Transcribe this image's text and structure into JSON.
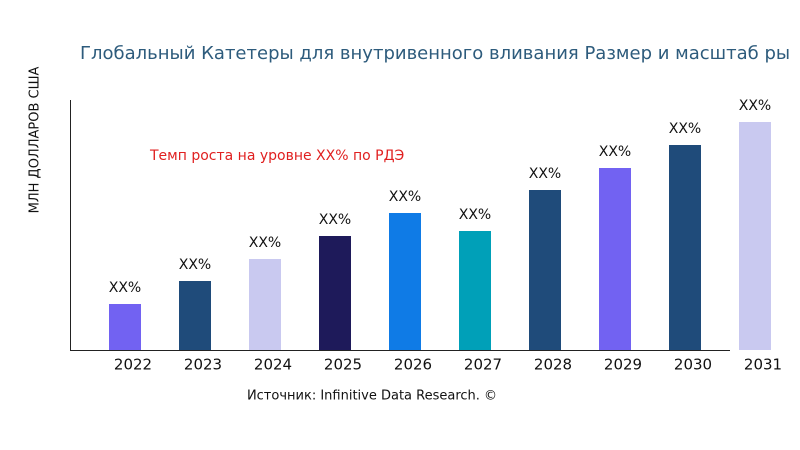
{
  "chart_data": {
    "type": "bar",
    "title": "Глобальный Катетеры для внутривенного вливания Размер и масштаб ры",
    "y_label": "МЛН ДОЛЛАРОВ США",
    "annotation": "Темп роста на уровне XX% по РДЭ",
    "source": "Источник: Infinitive Data Research. ©",
    "categories": [
      "2022",
      "2023",
      "2024",
      "2025",
      "2026",
      "2027",
      "2028",
      "2029",
      "2030",
      "2031"
    ],
    "values": [
      46,
      69,
      91,
      114,
      137,
      119,
      160,
      182,
      205,
      228
    ],
    "value_labels": [
      "XX%",
      "XX%",
      "XX%",
      "XX%",
      "XX%",
      "XX%",
      "XX%",
      "XX%",
      "XX%",
      "XX%"
    ],
    "colors": [
      "#7262f2",
      "#1f4b7a",
      "#c9c9f0",
      "#1e1a5a",
      "#0f7be6",
      "#00a0b8",
      "#1f4b7a",
      "#7262f2",
      "#1f4b7a",
      "#c9c9f0"
    ],
    "ylim": [
      0,
      250
    ]
  }
}
